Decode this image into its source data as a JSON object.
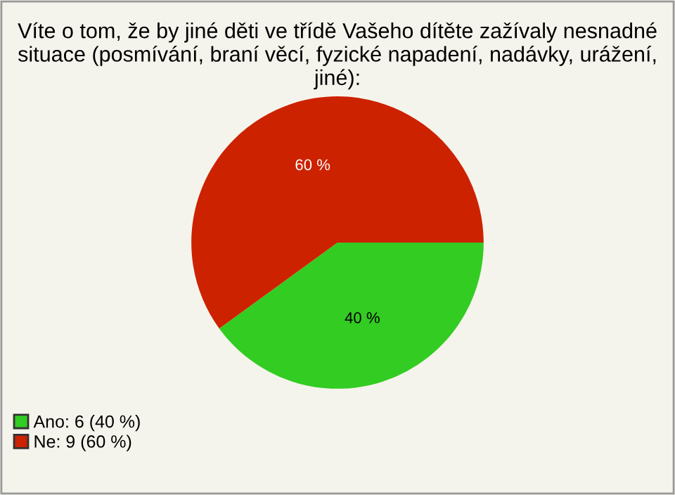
{
  "chart_data": {
    "type": "pie",
    "title": "Víte o tom, že by jiné děti ve třídě Vašeho dítěte zažívaly nesnadné situace (posmívání, braní věcí, fyzické napadení, nadávky, urážení, jiné):",
    "categories": [
      "Ano: 6 (40 %)",
      "Ne: 9 (60 %)"
    ],
    "values": [
      40,
      60
    ],
    "value_labels": [
      "40 %",
      "60 %"
    ],
    "colors": [
      "#33cc22",
      "#cc2200"
    ],
    "legend": "bottom left"
  }
}
